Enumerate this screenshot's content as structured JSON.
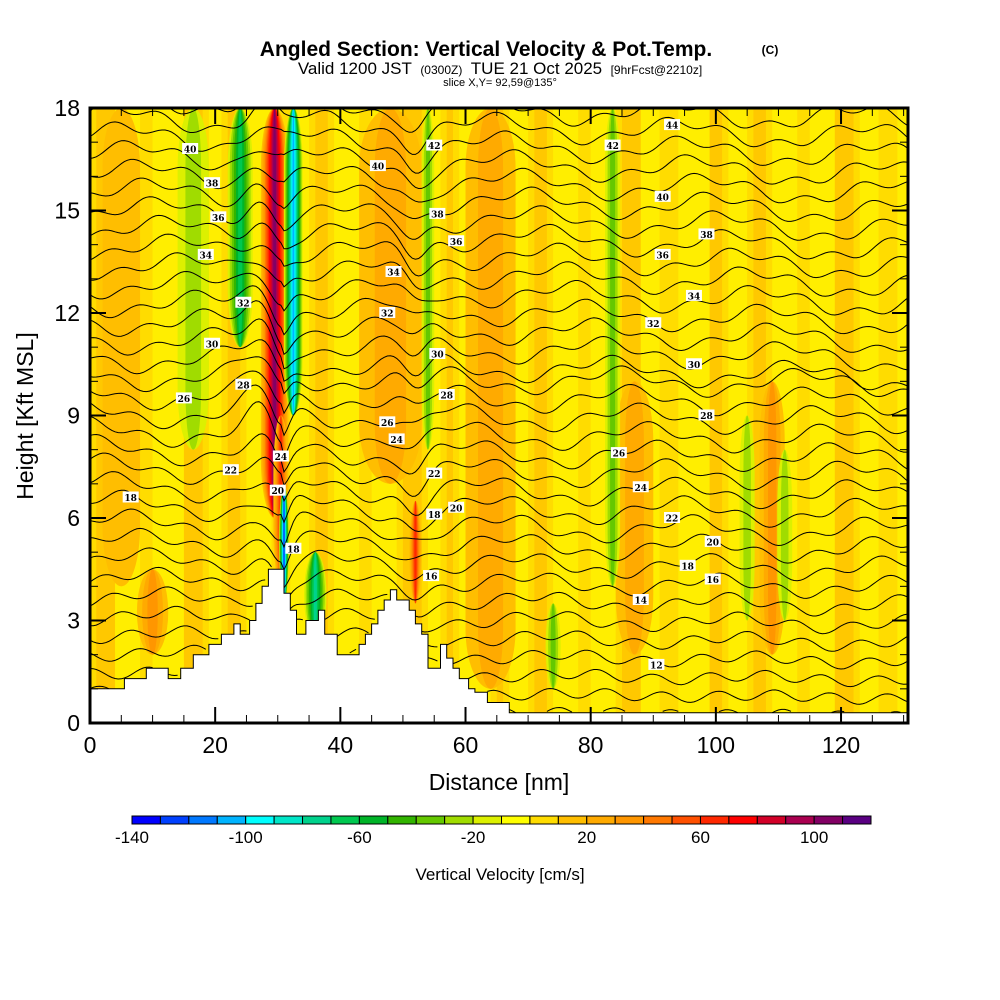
{
  "header": {
    "title": "Angled Section: Vertical Velocity & Pot.Temp.",
    "copyright": "(C)",
    "valid_prefix": "Valid 1200 JST",
    "valid_utc": "(0300Z)",
    "valid_date": "TUE 21 Oct 2025",
    "forecast": "[9hrFcst@2210z]",
    "slice": "slice X,Y= 92,59@135°"
  },
  "chart_data": {
    "type": "heatmap",
    "title": "Angled Section: Vertical Velocity & Pot.Temp.",
    "xlabel": "Distance [nm]",
    "ylabel": "Height [Kft MSL]",
    "xlim": [
      0,
      130.7
    ],
    "ylim": [
      0,
      18
    ],
    "x_ticks": [
      "0",
      "20",
      "40",
      "60",
      "80",
      "100",
      "120"
    ],
    "x_tick_values": [
      0,
      20,
      40,
      60,
      80,
      100,
      120
    ],
    "y_ticks": [
      "0",
      "3",
      "6",
      "9",
      "12",
      "15",
      "18"
    ],
    "y_tick_values": [
      0,
      3,
      6,
      9,
      12,
      15,
      18
    ],
    "colorbar": {
      "label": "Vertical Velocity [cm/s]",
      "min": -140,
      "max": 120,
      "step": 10,
      "tick_labels": [
        "-140",
        "-100",
        "-60",
        "-20",
        "20",
        "60",
        "100"
      ],
      "tick_values": [
        -140,
        -100,
        -60,
        -20,
        20,
        60,
        100
      ],
      "colors": [
        "#0000ff",
        "#0040ff",
        "#0078ff",
        "#00b4ff",
        "#00ffff",
        "#00e6c8",
        "#00d28c",
        "#00c850",
        "#00b428",
        "#32b400",
        "#64c800",
        "#a0dc00",
        "#dcf000",
        "#ffff00",
        "#ffdc00",
        "#ffbe00",
        "#ffaa00",
        "#ff9600",
        "#ff7800",
        "#ff5000",
        "#ff2800",
        "#ff0000",
        "#d20028",
        "#aa0050",
        "#820064",
        "#5a0082"
      ]
    },
    "updraft_bands": [
      {
        "x": 29.5,
        "width": 2.2,
        "value": 100,
        "zmin": 6,
        "zmax": 18
      },
      {
        "x": 30.5,
        "width": 1.2,
        "value": 60,
        "zmin": 4,
        "zmax": 9
      },
      {
        "x": 52,
        "width": 1.0,
        "value": 60,
        "zmin": 3.5,
        "zmax": 6.5
      },
      {
        "x": 10,
        "width": 2.5,
        "value": 30,
        "zmin": 2,
        "zmax": 4.5
      },
      {
        "x": 64,
        "width": 4,
        "value": 20,
        "zmin": 1,
        "zmax": 18
      },
      {
        "x": 87,
        "width": 3,
        "value": 20,
        "zmin": 2,
        "zmax": 10
      },
      {
        "x": 109,
        "width": 2,
        "value": 30,
        "zmin": 2,
        "zmax": 10
      },
      {
        "x": 48,
        "width": 5,
        "value": 20,
        "zmin": 7,
        "zmax": 18
      },
      {
        "x": 5,
        "width": 3,
        "value": 15,
        "zmin": 4,
        "zmax": 18
      }
    ],
    "downdraft_bands": [
      {
        "x": 32.5,
        "width": 1.5,
        "value": -100,
        "zmin": 9,
        "zmax": 18
      },
      {
        "x": 31,
        "width": 0.8,
        "value": -120,
        "zmin": 3.5,
        "zmax": 7
      },
      {
        "x": 24,
        "width": 2,
        "value": -60,
        "zmin": 11,
        "zmax": 18
      },
      {
        "x": 36,
        "width": 1.8,
        "value": -70,
        "zmin": 2.5,
        "zmax": 5
      },
      {
        "x": 54,
        "width": 1.0,
        "value": -30,
        "zmin": 8,
        "zmax": 18
      },
      {
        "x": 83.5,
        "width": 1.2,
        "value": -30,
        "zmin": 4,
        "zmax": 18
      },
      {
        "x": 16.5,
        "width": 2.5,
        "value": -25,
        "zmin": 8,
        "zmax": 18
      },
      {
        "x": 74,
        "width": 1.2,
        "value": -30,
        "zmin": 1,
        "zmax": 3.5
      },
      {
        "x": 105,
        "width": 1.2,
        "value": -25,
        "zmin": 3,
        "zmax": 9
      },
      {
        "x": 111,
        "width": 1.2,
        "value": -25,
        "zmin": 3,
        "zmax": 8
      }
    ],
    "terrain": {
      "x": [
        0,
        3,
        5.5,
        5.5,
        9,
        9,
        12.5,
        12.5,
        14.5,
        14.5,
        16.5,
        16.5,
        19,
        19,
        21,
        21,
        23,
        23,
        24,
        24,
        25.5,
        25.5,
        26.5,
        26.5,
        27.5,
        27.5,
        28.5,
        28.5,
        31,
        31,
        32,
        32,
        33,
        33,
        34.5,
        34.5,
        36.5,
        36.5,
        37.5,
        37.5,
        39.5,
        39.5,
        43,
        43,
        44,
        44,
        45,
        45,
        46,
        46,
        47,
        47,
        48,
        48,
        49,
        49,
        51,
        51,
        52,
        52,
        53,
        53,
        54,
        54,
        56,
        56,
        57,
        57,
        58,
        58,
        59,
        59,
        60.5,
        60.5,
        61.5,
        61.5,
        63.5,
        63.5,
        67,
        67,
        69.5,
        69.5,
        130.7
      ],
      "height_kft": [
        1.0,
        1.0,
        1.0,
        1.3,
        1.3,
        1.6,
        1.6,
        1.3,
        1.3,
        1.6,
        1.6,
        2.0,
        2.0,
        2.3,
        2.3,
        2.6,
        2.6,
        2.9,
        2.9,
        2.6,
        2.6,
        3.0,
        3.0,
        3.5,
        3.5,
        4.0,
        4.0,
        4.5,
        4.5,
        3.8,
        3.8,
        3.3,
        3.3,
        2.6,
        2.6,
        3.0,
        3.0,
        3.3,
        3.3,
        2.6,
        2.6,
        2.0,
        2.0,
        2.3,
        2.3,
        2.6,
        2.6,
        2.9,
        2.9,
        3.3,
        3.3,
        3.6,
        3.6,
        3.9,
        3.9,
        3.6,
        3.6,
        3.3,
        3.3,
        2.9,
        2.9,
        2.6,
        2.6,
        1.6,
        1.6,
        2.3,
        2.3,
        1.9,
        1.9,
        1.6,
        1.6,
        1.3,
        1.3,
        1.0,
        1.0,
        0.9,
        0.9,
        0.6,
        0.6,
        0.3,
        0.3,
        0.3,
        0.3
      ]
    },
    "pot_temp_contour_interval": 1,
    "pot_temp_range": [
      11,
      45
    ],
    "contour_labels": [
      {
        "text": "40",
        "x": 16,
        "z": 16.8
      },
      {
        "text": "38",
        "x": 19.5,
        "z": 15.8
      },
      {
        "text": "36",
        "x": 20.5,
        "z": 14.8
      },
      {
        "text": "34",
        "x": 18.5,
        "z": 13.7
      },
      {
        "text": "32",
        "x": 24.5,
        "z": 12.3
      },
      {
        "text": "30",
        "x": 19.5,
        "z": 11.1
      },
      {
        "text": "28",
        "x": 24.5,
        "z": 9.9
      },
      {
        "text": "26",
        "x": 15,
        "z": 9.5
      },
      {
        "text": "22",
        "x": 22.5,
        "z": 7.4
      },
      {
        "text": "18",
        "x": 6.5,
        "z": 6.6
      },
      {
        "text": "24",
        "x": 30.5,
        "z": 7.8
      },
      {
        "text": "20",
        "x": 30,
        "z": 6.8
      },
      {
        "text": "18",
        "x": 32.5,
        "z": 5.1
      },
      {
        "text": "42",
        "x": 55,
        "z": 16.9
      },
      {
        "text": "40",
        "x": 46,
        "z": 16.3
      },
      {
        "text": "38",
        "x": 55.5,
        "z": 14.9
      },
      {
        "text": "36",
        "x": 58.5,
        "z": 14.1
      },
      {
        "text": "34",
        "x": 48.5,
        "z": 13.2
      },
      {
        "text": "32",
        "x": 47.5,
        "z": 12.0
      },
      {
        "text": "30",
        "x": 55.5,
        "z": 10.8
      },
      {
        "text": "28",
        "x": 57,
        "z": 9.6
      },
      {
        "text": "26",
        "x": 47.5,
        "z": 8.8
      },
      {
        "text": "24",
        "x": 49,
        "z": 8.3
      },
      {
        "text": "22",
        "x": 55,
        "z": 7.3
      },
      {
        "text": "20",
        "x": 58.5,
        "z": 6.3
      },
      {
        "text": "18",
        "x": 55,
        "z": 6.1
      },
      {
        "text": "16",
        "x": 54.5,
        "z": 4.3
      },
      {
        "text": "44",
        "x": 93,
        "z": 17.5
      },
      {
        "text": "42",
        "x": 83.5,
        "z": 16.9
      },
      {
        "text": "40",
        "x": 91.5,
        "z": 15.4
      },
      {
        "text": "38",
        "x": 98.5,
        "z": 14.3
      },
      {
        "text": "36",
        "x": 91.5,
        "z": 13.7
      },
      {
        "text": "34",
        "x": 96.5,
        "z": 12.5
      },
      {
        "text": "32",
        "x": 90,
        "z": 11.7
      },
      {
        "text": "30",
        "x": 96.5,
        "z": 10.5
      },
      {
        "text": "28",
        "x": 98.5,
        "z": 9.0
      },
      {
        "text": "26",
        "x": 84.5,
        "z": 7.9
      },
      {
        "text": "24",
        "x": 88,
        "z": 6.9
      },
      {
        "text": "22",
        "x": 93,
        "z": 6.0
      },
      {
        "text": "20",
        "x": 99.5,
        "z": 5.3
      },
      {
        "text": "18",
        "x": 95.5,
        "z": 4.6
      },
      {
        "text": "16",
        "x": 99.5,
        "z": 4.2
      },
      {
        "text": "14",
        "x": 88,
        "z": 3.6
      },
      {
        "text": "12",
        "x": 90.5,
        "z": 1.7
      }
    ]
  }
}
